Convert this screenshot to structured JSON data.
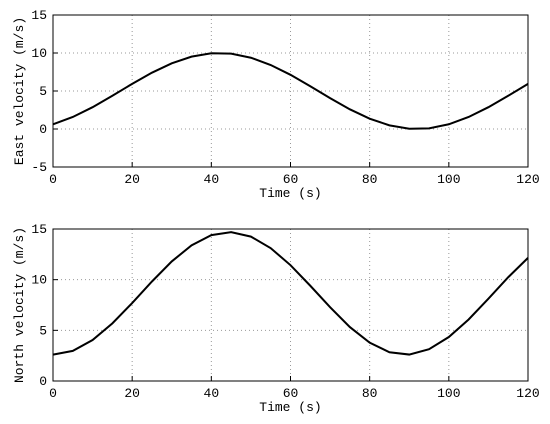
{
  "chart_data": [
    {
      "type": "line",
      "ylabel": "East velocity (m/s)",
      "xlabel": "Time (s)",
      "color": "#000000",
      "grid": true,
      "x": [
        0,
        5,
        10,
        15,
        20,
        25,
        30,
        35,
        40,
        45,
        50,
        55,
        60,
        65,
        70,
        75,
        80,
        85,
        90,
        95,
        100,
        105,
        110,
        115,
        120
      ],
      "values": [
        0.62,
        1.58,
        2.87,
        4.37,
        5.94,
        7.41,
        8.64,
        9.52,
        9.96,
        9.91,
        9.38,
        8.42,
        7.13,
        5.63,
        4.06,
        2.59,
        1.36,
        0.48,
        0.04,
        0.09,
        0.62,
        1.58,
        2.87,
        4.37,
        5.94
      ],
      "xlim": [
        0,
        120
      ],
      "xticks": [
        0,
        20,
        40,
        60,
        80,
        100,
        120
      ],
      "ylim": [
        -5,
        15
      ],
      "yticks": [
        -5,
        0,
        5,
        10,
        15
      ]
    },
    {
      "type": "line",
      "ylabel": "North velocity (m/s)",
      "xlabel": "Time (s)",
      "color": "#000000",
      "grid": true,
      "x": [
        0,
        5,
        10,
        15,
        20,
        25,
        30,
        35,
        40,
        45,
        50,
        55,
        60,
        65,
        70,
        75,
        80,
        85,
        90,
        95,
        100,
        105,
        110,
        115,
        120
      ],
      "values": [
        2.6,
        2.97,
        4.04,
        5.69,
        7.69,
        9.82,
        11.8,
        13.39,
        14.4,
        14.69,
        14.25,
        13.11,
        11.43,
        9.4,
        7.28,
        5.32,
        3.78,
        2.84,
        2.61,
        3.14,
        4.34,
        6.07,
        8.12,
        10.24,
        12.15
      ],
      "xlim": [
        0,
        120
      ],
      "xticks": [
        0,
        20,
        40,
        60,
        80,
        100,
        120
      ],
      "ylim": [
        0,
        15
      ],
      "yticks": [
        0,
        5,
        10,
        15
      ]
    }
  ]
}
